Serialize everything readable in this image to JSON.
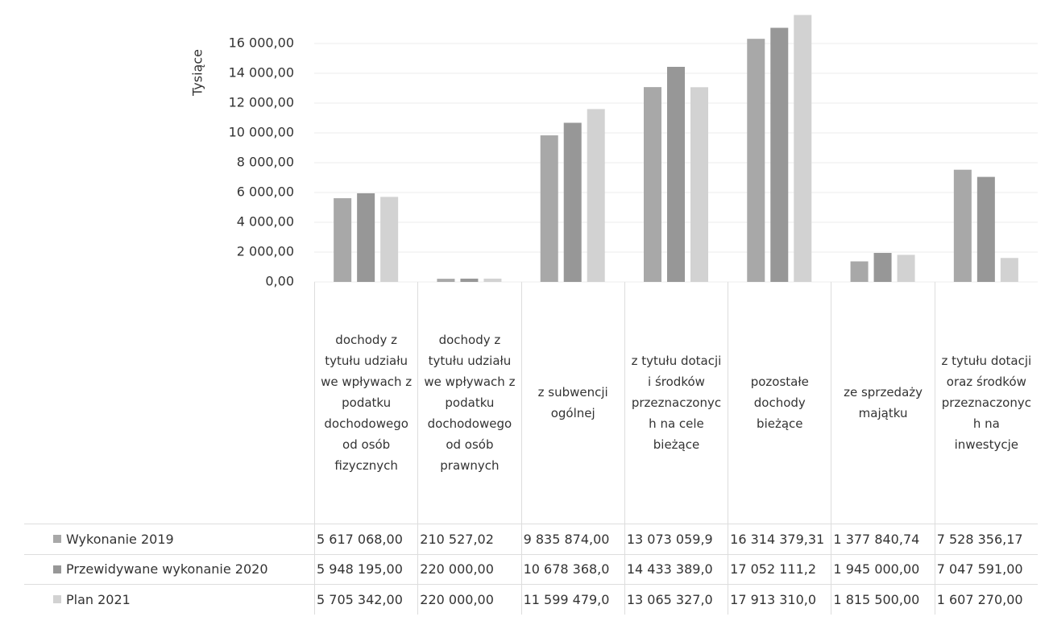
{
  "chart_data": {
    "type": "bar",
    "y_label": "Tysiące",
    "categories": [
      "dochody z tytułu udziału we wpływach z podatku dochodowego od osób fizycznych",
      "dochody z tytułu udziału we wpływach z podatku dochodowego od osób prawnych",
      "z subwencji ogólnej",
      "z tytułu dotacji i środków przeznaczonych na cele bieżące",
      "pozostałe dochody bieżące",
      "ze sprzedaży majątku",
      "z tytułu dotacji oraz środków przeznaczonych na inwestycje"
    ],
    "series": [
      {
        "name": "Wykonanie 2019",
        "color": "#a8a8a8",
        "values": [
          5617.068,
          210.52702,
          9835.874,
          13073.0599,
          16314.37931,
          1377.84074,
          7528.35617
        ],
        "value_labels": [
          "5 617 068,00",
          "210 527,02",
          "9 835 874,00",
          "13 073 059,9",
          "16 314 379,31",
          "1 377 840,74",
          "7 528 356,17"
        ]
      },
      {
        "name": "Przewidywane wykonanie 2020",
        "color": "#979797",
        "values": [
          5948.195,
          220,
          10678.368,
          14433.389,
          17052.1112,
          1945,
          7047.591
        ],
        "value_labels": [
          "5 948 195,00",
          "220 000,00",
          "10 678 368,0",
          "14 433 389,0",
          "17 052 111,2",
          "1 945 000,00",
          "7 047 591,00"
        ]
      },
      {
        "name": "Plan 2021",
        "color": "#d2d2d2",
        "values": [
          5705.342,
          220,
          11599.479,
          13065.327,
          17913.31,
          1815.5,
          1607.27
        ],
        "value_labels": [
          "5 705 342,00",
          "220 000,00",
          "11 599 479,0",
          "13 065 327,0",
          "17 913 310,0",
          "1 815 500,00",
          "1 607 270,00"
        ]
      }
    ],
    "ylim": [
      0,
      18000
    ],
    "yticks": [
      {
        "value": 0,
        "label": "0,00"
      },
      {
        "value": 2000,
        "label": "2 000,00"
      },
      {
        "value": 4000,
        "label": "4 000,00"
      },
      {
        "value": 6000,
        "label": "6 000,00"
      },
      {
        "value": 8000,
        "label": "8 000,00"
      },
      {
        "value": 10000,
        "label": "10 000,00"
      },
      {
        "value": 12000,
        "label": "12 000,00"
      },
      {
        "value": 14000,
        "label": "14 000,00"
      },
      {
        "value": 16000,
        "label": "16 000,00"
      }
    ],
    "grid": true
  }
}
